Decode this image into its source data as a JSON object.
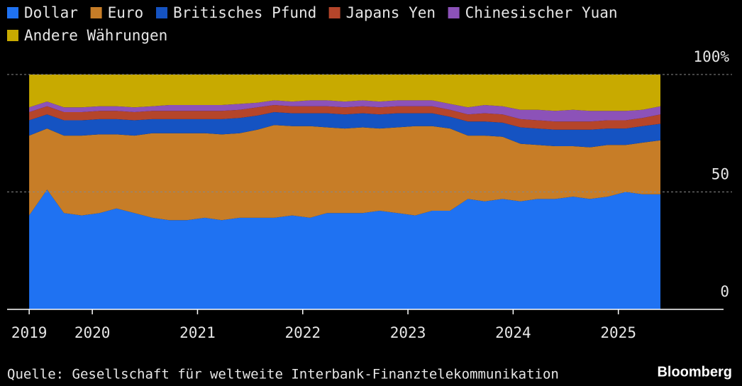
{
  "chart_data": {
    "type": "stacked_area",
    "source": "Quelle: Gesellschaft für weltweite Interbank-Finanztelekommunikation",
    "brand": "Bloomberg",
    "x": [
      2019.4,
      2019.57,
      2019.73,
      2019.9,
      2020.07,
      2020.23,
      2020.4,
      2020.57,
      2020.73,
      2020.9,
      2021.07,
      2021.23,
      2021.4,
      2021.57,
      2021.73,
      2021.9,
      2022.07,
      2022.23,
      2022.4,
      2022.57,
      2022.73,
      2022.9,
      2023.07,
      2023.23,
      2023.4,
      2023.57,
      2023.73,
      2023.9,
      2024.07,
      2024.23,
      2024.4,
      2024.57,
      2024.73,
      2024.9,
      2025.07,
      2025.23,
      2025.4
    ],
    "series": [
      {
        "name": "Dollar",
        "color": "#1f72f2",
        "values": [
          40,
          51,
          41,
          40,
          41,
          43,
          41,
          39,
          38,
          38,
          39,
          38,
          39,
          39,
          39,
          40,
          39,
          41,
          41,
          41,
          42,
          41,
          40,
          42,
          42,
          47,
          46,
          47,
          46,
          47,
          47,
          48,
          47,
          48,
          50,
          49,
          49
        ]
      },
      {
        "name": "Euro",
        "color": "#c77d27",
        "values": [
          34,
          26,
          33,
          34,
          33.5,
          31.5,
          33,
          36,
          37,
          37,
          36,
          36.5,
          36,
          37.5,
          39.5,
          38,
          39,
          36.5,
          36,
          36.5,
          35,
          36.5,
          38,
          36,
          35,
          27,
          28,
          26.5,
          24.5,
          23,
          22.5,
          21.5,
          22,
          22,
          20,
          22,
          23
        ]
      },
      {
        "name": "Britisches Pfund",
        "color": "#1553c2",
        "values": [
          6.5,
          6,
          6.5,
          6.5,
          6.5,
          6.5,
          6.5,
          6,
          6,
          6,
          6,
          6.5,
          6.5,
          6,
          5.5,
          5.5,
          5.5,
          6,
          6,
          6,
          6,
          6,
          5.5,
          5.5,
          5,
          6,
          6,
          6,
          7,
          7,
          7,
          7,
          7.5,
          7,
          7,
          7,
          7
        ]
      },
      {
        "name": "Japans Yen",
        "color": "#b5452a",
        "values": [
          3.5,
          3.5,
          3.5,
          3.5,
          3.5,
          3.5,
          3.5,
          3.5,
          3.5,
          3.5,
          3.5,
          3.5,
          3.5,
          3.5,
          3,
          3,
          3,
          3,
          3,
          3,
          3,
          3,
          3,
          3,
          3,
          3,
          3.5,
          3.5,
          3.5,
          3.5,
          3.5,
          3.5,
          3.5,
          3.5,
          3.5,
          3.5,
          4
        ]
      },
      {
        "name": "Chinesischer Yuan",
        "color": "#8c52b8",
        "values": [
          2,
          2,
          2,
          2,
          2,
          2,
          2,
          2,
          2.5,
          2.5,
          2.5,
          2.5,
          2.5,
          2,
          2,
          2,
          2.5,
          2.5,
          2.5,
          2.5,
          2.5,
          2.5,
          2.5,
          2.5,
          2.5,
          3,
          3.5,
          3.5,
          4,
          4.5,
          4.5,
          5,
          4.5,
          4,
          4,
          3.5,
          3.5
        ]
      },
      {
        "name": "Andere Währungen",
        "color": "#c8aa00",
        "values": [
          14,
          11.5,
          14,
          14,
          13.5,
          13.5,
          14,
          13.5,
          13,
          13,
          13,
          13,
          12.5,
          12,
          11,
          11.5,
          11,
          11,
          11.5,
          11,
          11.5,
          11,
          11,
          11,
          12.5,
          14,
          13,
          13.5,
          15,
          15,
          15.5,
          15,
          15.5,
          15.5,
          15.5,
          15,
          13.5
        ]
      }
    ],
    "xlim": [
      2019.19,
      2026.0
    ],
    "xticks": [
      {
        "value": 2019.4,
        "label": "2019"
      },
      2020,
      2021,
      2022,
      2023,
      2024,
      2025
    ],
    "ylim": [
      0,
      100
    ],
    "yticks": [
      0,
      50,
      {
        "value": 100,
        "label": "100%"
      }
    ],
    "grid": true
  }
}
